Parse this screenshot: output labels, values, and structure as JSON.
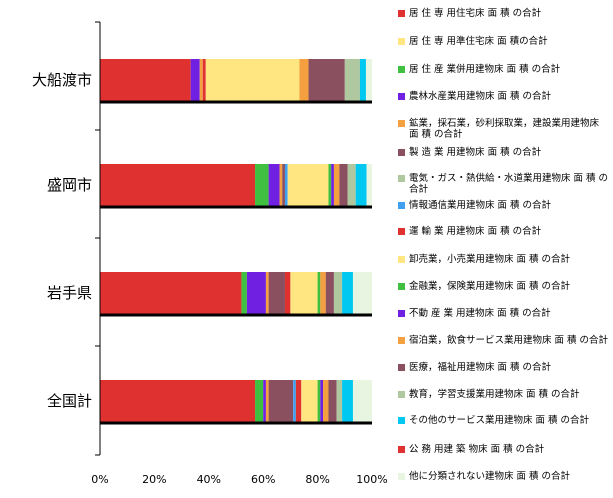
{
  "chart_data": {
    "type": "bar",
    "orientation": "horizontal",
    "stacked": "percent",
    "categories": [
      "大船渡市",
      "盛岡市",
      "岩手県",
      "全国計"
    ],
    "x_ticks": [
      "0%",
      "20%",
      "40%",
      "60%",
      "80%",
      "100%"
    ],
    "xlim": [
      0,
      100
    ],
    "grid": false,
    "legend_position": "right",
    "series": [
      {
        "name": "居 住 専 用住宅床 面 積 の合計",
        "color": "#e03131",
        "values": [
          30,
          57,
          52,
          57
        ]
      },
      {
        "name": "居 住 専 用準住宅床 面 積の合計",
        "color": "#ffe680",
        "values": [
          0,
          0,
          0,
          0
        ]
      },
      {
        "name": "居 住 産 業併用建物床 面 積 の合計",
        "color": "#40c040",
        "values": [
          0,
          5,
          2,
          3
        ]
      },
      {
        "name": "農林水産業用建物床 面 積 の合計",
        "color": "#7020e0",
        "values": [
          3,
          4,
          7,
          1
        ]
      },
      {
        "name": "鉱業，採石業，砂利採取業，建設業用建物床 面 積 の合計",
        "color": "#f4a040",
        "values": [
          1,
          1,
          1,
          1
        ]
      },
      {
        "name": "製 造 業 用建物床 面 積 の合計",
        "color": "#8a5060",
        "values": [
          0,
          1,
          6,
          9
        ]
      },
      {
        "name": "電気・ガス・熱供給・水道業用建物床 面 積 の合計",
        "color": "#b0c8a0",
        "values": [
          0,
          0,
          0,
          0
        ]
      },
      {
        "name": "情報通信業用建物床 面 積 の合計",
        "color": "#40a0f0",
        "values": [
          0,
          1,
          0,
          1
        ]
      },
      {
        "name": "運 輸 業 用建物床 面 積 の合計",
        "color": "#e03131",
        "values": [
          1,
          0,
          2,
          2
        ]
      },
      {
        "name": "卸売業，小売業用建物床 面 積 の合計",
        "color": "#ffe680",
        "values": [
          31,
          15,
          10,
          6
        ]
      },
      {
        "name": "金融業，保険業用建物床 面 積 の合計",
        "color": "#40c040",
        "values": [
          0,
          1,
          1,
          1
        ]
      },
      {
        "name": "不動 産 業 用建物床 面 積 の合計",
        "color": "#7020e0",
        "values": [
          0,
          1,
          0,
          1
        ]
      },
      {
        "name": "宿泊業，飲食サービス業用建物床 面 積 の合計",
        "color": "#f4a040",
        "values": [
          3,
          2,
          2,
          2
        ]
      },
      {
        "name": "医療，福祉用建物床 面 積 の合計",
        "color": "#8a5060",
        "values": [
          12,
          3,
          3,
          3
        ]
      },
      {
        "name": "教育，学習支援業用建物床 面 積 の合計",
        "color": "#b0c8a0",
        "values": [
          5,
          3,
          3,
          2
        ]
      },
      {
        "name": "その他のサービス業用建物床 面 積 の合計",
        "color": "#00c8f0",
        "values": [
          2,
          4,
          4,
          4
        ]
      },
      {
        "name": "公 務 用建 築 物床 面 積 の合計",
        "color": "#e03131",
        "values": [
          0,
          0,
          0,
          0
        ]
      },
      {
        "name": "他に分類されない建物床 面 積 の合計",
        "color": "#e8f5e0",
        "values": [
          2,
          2,
          7,
          7
        ]
      }
    ]
  }
}
